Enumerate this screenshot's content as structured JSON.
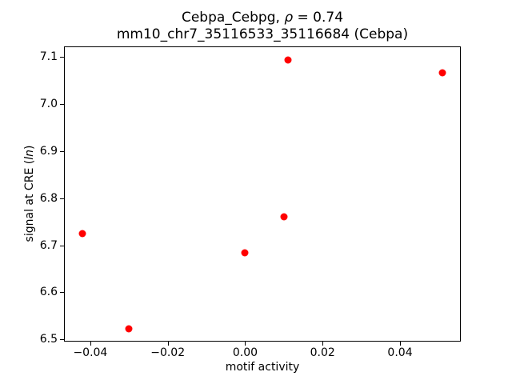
{
  "title": {
    "line1_prefix": "Cebpa_Cebpg, ",
    "line1_rho": "ρ",
    "line1_suffix": " = 0.74",
    "line2": "mm10_chr7_35116533_35116684 (Cebpa)"
  },
  "axes": {
    "xlabel": "motif activity",
    "ylabel_prefix": "signal at CRE (",
    "ylabel_italic": "ln",
    "ylabel_suffix": ")"
  },
  "chart_data": {
    "type": "scatter",
    "title": "Cebpa_Cebpg, ρ = 0.74",
    "subtitle": "mm10_chr7_35116533_35116684 (Cebpa)",
    "xlabel": "motif activity",
    "ylabel": "signal at CRE (ln)",
    "marker_color": "#ff0000",
    "marker_diameter_px": 9,
    "grid": false,
    "legend_position": "none",
    "xlim": [
      -0.0468,
      0.0557
    ],
    "ylim": [
      6.4953,
      7.1223
    ],
    "x_ticks": [
      -0.04,
      -0.02,
      0,
      0.02,
      0.04
    ],
    "x_tick_labels": [
      "−0.04",
      "−0.02",
      "0.00",
      "0.02",
      "0.04"
    ],
    "y_ticks": [
      6.5,
      6.6,
      6.7,
      6.8,
      6.9,
      7.0,
      7.1
    ],
    "y_tick_labels": [
      "6.5",
      "6.6",
      "6.7",
      "6.8",
      "6.9",
      "7.0",
      "7.1"
    ],
    "points": [
      {
        "x": -0.042,
        "y": 6.725
      },
      {
        "x": -0.03,
        "y": 6.523
      },
      {
        "x": 0.0,
        "y": 6.684
      },
      {
        "x": 0.01,
        "y": 6.761
      },
      {
        "x": 0.011,
        "y": 7.094
      },
      {
        "x": 0.051,
        "y": 7.066
      }
    ]
  }
}
